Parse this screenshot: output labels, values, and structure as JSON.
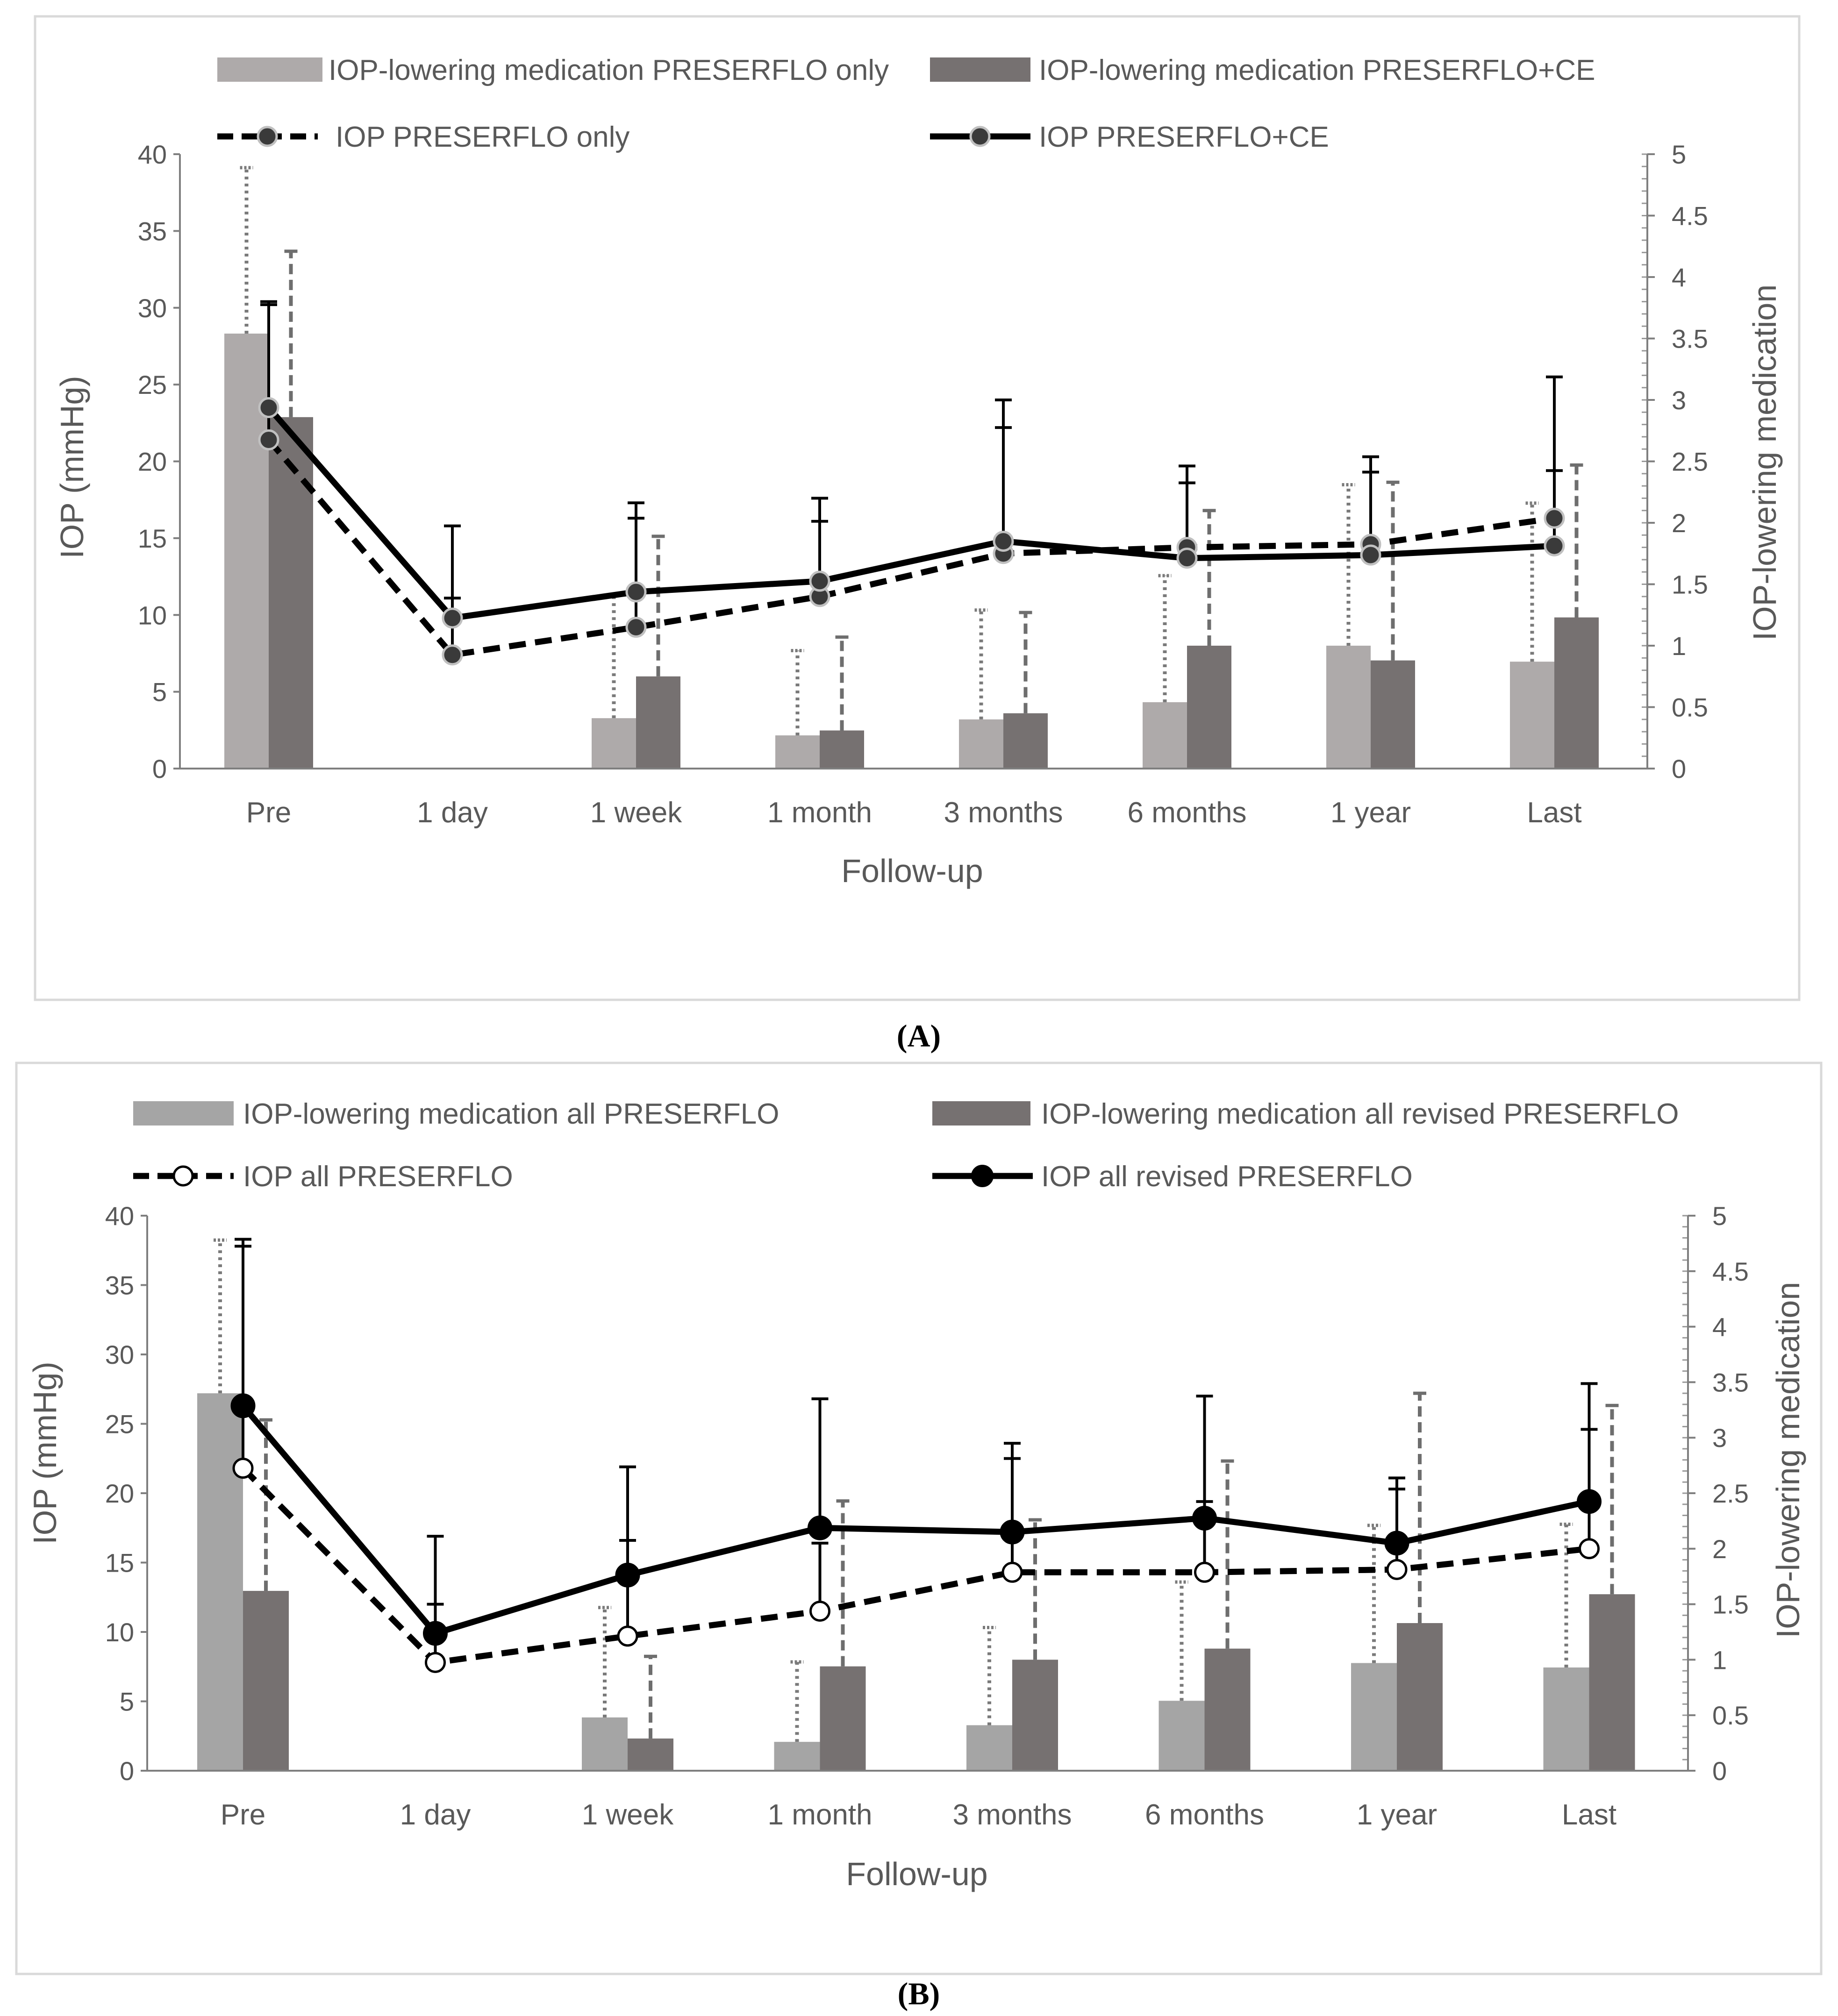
{
  "chart_data": [
    {
      "type": "bar+line",
      "panel_label": "(A)",
      "xlabel": "Follow-up",
      "ylabel": "IOP (mmHg)",
      "y2label": "IOP-lowering medication",
      "ylim": [
        0,
        40
      ],
      "y2lim": [
        0,
        5
      ],
      "yticks": [
        "0",
        "5",
        "10",
        "15",
        "20",
        "25",
        "30",
        "35",
        "40"
      ],
      "y2ticks": [
        "0",
        "0.5",
        "1",
        "1.5",
        "2",
        "2.5",
        "3",
        "3.5",
        "4",
        "4.5",
        "5"
      ],
      "categories": [
        "Pre",
        "1 day",
        "1 week",
        "1 month",
        "3 months",
        "6 months",
        "1 year",
        "Last"
      ],
      "bar_series": [
        {
          "name": "IOP-lowering medication PRESERFLO only",
          "color": "#aeaaaa",
          "error_style": "dotted",
          "values": [
            3.54,
            null,
            0.41,
            0.27,
            0.4,
            0.54,
            1.0,
            0.87
          ],
          "errors": [
            1.35,
            null,
            1.0,
            0.69,
            0.89,
            1.03,
            1.31,
            1.29
          ]
        },
        {
          "name": "IOP-lowering medication PRESERFLO+CE",
          "color": "#767171",
          "error_style": "dashed",
          "values": [
            2.86,
            null,
            0.75,
            0.31,
            0.45,
            1.0,
            0.88,
            1.23
          ],
          "errors": [
            1.35,
            null,
            1.14,
            0.76,
            0.82,
            1.1,
            1.45,
            1.24
          ]
        }
      ],
      "line_series": [
        {
          "name": "IOP PRESERFLO only",
          "style": "dashed",
          "marker_fill": "#3a3a3a",
          "values": [
            21.4,
            7.4,
            9.2,
            11.2,
            14.0,
            14.4,
            14.6,
            16.3
          ],
          "errors": [
            9.0,
            3.7,
            7.1,
            4.9,
            8.2,
            4.2,
            4.7,
            3.1
          ]
        },
        {
          "name": "IOP PRESERFLO+CE",
          "style": "solid",
          "marker_fill": "#3a3a3a",
          "values": [
            23.5,
            9.8,
            11.5,
            12.2,
            14.8,
            13.7,
            13.9,
            14.5
          ],
          "errors": [
            6.7,
            6.0,
            5.8,
            5.4,
            9.2,
            6.0,
            6.4,
            11.0
          ]
        }
      ]
    },
    {
      "type": "bar+line",
      "panel_label": "(B)",
      "xlabel": "Follow-up",
      "ylabel": "IOP (mmHg)",
      "y2label": "IOP-lowering medication",
      "ylim": [
        0,
        40
      ],
      "y2lim": [
        0,
        5
      ],
      "yticks": [
        "0",
        "5",
        "10",
        "15",
        "20",
        "25",
        "30",
        "35",
        "40"
      ],
      "y2ticks": [
        "0",
        "0.5",
        "1",
        "1.5",
        "2",
        "2.5",
        "3",
        "3.5",
        "4",
        "4.5",
        "5"
      ],
      "categories": [
        "Pre",
        "1 day",
        "1 week",
        "1 month",
        "3 months",
        "6 months",
        "1 year",
        "Last"
      ],
      "bar_series": [
        {
          "name": "IOP-lowering medication all PRESERFLO",
          "color": "#a5a5a5",
          "error_style": "dotted",
          "values": [
            3.4,
            null,
            0.48,
            0.26,
            0.41,
            0.63,
            0.97,
            0.93
          ],
          "errors": [
            1.38,
            null,
            0.99,
            0.72,
            0.88,
            1.07,
            1.24,
            1.29
          ]
        },
        {
          "name": "IOP-lowering medication all revised PRESERFLO",
          "color": "#767171",
          "error_style": "dashed",
          "values": [
            1.62,
            null,
            0.29,
            0.94,
            1.0,
            1.1,
            1.33,
            1.59
          ],
          "errors": [
            1.54,
            null,
            0.74,
            1.49,
            1.26,
            1.69,
            2.07,
            1.7
          ]
        }
      ],
      "line_series": [
        {
          "name": "IOP all PRESERFLO",
          "style": "dashed",
          "marker_fill": "#ffffff",
          "values": [
            21.8,
            7.8,
            9.7,
            11.5,
            14.3,
            14.3,
            14.5,
            16.0
          ],
          "errors": [
            16.5,
            4.2,
            6.9,
            4.9,
            8.2,
            5.1,
            5.8,
            8.6
          ]
        },
        {
          "name": "IOP all revised PRESERFLO",
          "style": "solid",
          "marker_fill": "#000000",
          "values": [
            26.3,
            9.9,
            14.1,
            17.5,
            17.2,
            18.2,
            16.4,
            19.4
          ],
          "errors": [
            11.5,
            7.0,
            7.8,
            9.3,
            6.4,
            8.8,
            4.7,
            8.5
          ]
        }
      ]
    }
  ]
}
